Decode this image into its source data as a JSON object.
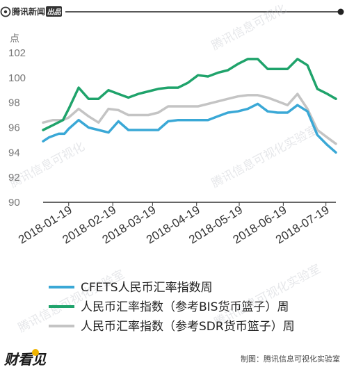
{
  "header": {
    "brand": "腾讯新闻",
    "brand_badge": "出品"
  },
  "footer": {
    "logo_text": "财看见",
    "credit": "制图：腾讯信息可视化实验室"
  },
  "colors": {
    "series": [
      "#3aa8d6",
      "#1fa36b",
      "#c4c4c4"
    ],
    "header_rule": "#222222",
    "axis": "#333333"
  },
  "chart_data": {
    "type": "line",
    "unit_label": "点",
    "ylim": [
      90,
      103
    ],
    "yticks": [
      90,
      92,
      94,
      96,
      98,
      100,
      102
    ],
    "xlim": [
      "2018-01-01",
      "2018-07-26"
    ],
    "xticks": [
      "2018-01-19",
      "2018-02-19",
      "2018-03-19",
      "2018-04-19",
      "2018-05-19",
      "2018-06-19",
      "2018-07-19"
    ],
    "grid": false,
    "legend_position": "bottom",
    "series": [
      {
        "name": "CFETS人民币汇率指数周",
        "x": [
          "2018-01-01",
          "2018-01-05",
          "2018-01-12",
          "2018-01-16",
          "2018-01-19",
          "2018-01-26",
          "2018-02-02",
          "2018-02-09",
          "2018-02-16",
          "2018-02-23",
          "2018-03-02",
          "2018-03-09",
          "2018-03-16",
          "2018-03-23",
          "2018-03-30",
          "2018-04-06",
          "2018-04-13",
          "2018-04-20",
          "2018-04-27",
          "2018-05-04",
          "2018-05-11",
          "2018-05-18",
          "2018-05-25",
          "2018-06-01",
          "2018-06-08",
          "2018-06-15",
          "2018-06-22",
          "2018-06-29",
          "2018-07-06",
          "2018-07-13",
          "2018-07-20",
          "2018-07-26"
        ],
        "y": [
          94.9,
          95.2,
          95.5,
          95.5,
          95.9,
          96.6,
          96.0,
          95.8,
          95.6,
          96.5,
          95.8,
          95.8,
          95.8,
          95.8,
          96.5,
          96.6,
          96.6,
          96.6,
          96.6,
          96.9,
          97.2,
          97.3,
          97.5,
          97.9,
          97.3,
          97.2,
          97.2,
          97.8,
          97.3,
          95.4,
          94.6,
          94.0
        ]
      },
      {
        "name": "人民币汇率指数（参考BIS货币篮子）周",
        "x": [
          "2018-01-01",
          "2018-01-08",
          "2018-01-15",
          "2018-01-19",
          "2018-01-26",
          "2018-02-02",
          "2018-02-09",
          "2018-02-16",
          "2018-02-23",
          "2018-03-02",
          "2018-03-09",
          "2018-03-16",
          "2018-03-23",
          "2018-03-30",
          "2018-04-06",
          "2018-04-13",
          "2018-04-20",
          "2018-04-27",
          "2018-05-04",
          "2018-05-11",
          "2018-05-18",
          "2018-05-25",
          "2018-06-01",
          "2018-06-08",
          "2018-06-15",
          "2018-06-22",
          "2018-06-29",
          "2018-07-06",
          "2018-07-13",
          "2018-07-20",
          "2018-07-26"
        ],
        "y": [
          95.8,
          96.2,
          96.6,
          97.5,
          99.2,
          98.3,
          98.3,
          99.0,
          98.7,
          98.4,
          98.7,
          98.9,
          99.1,
          99.2,
          99.2,
          99.6,
          100.2,
          100.1,
          100.4,
          100.6,
          101.1,
          101.5,
          101.5,
          100.7,
          100.7,
          100.7,
          101.5,
          101.0,
          99.1,
          98.7,
          98.3
        ]
      },
      {
        "name": "人民币汇率指数（参考SDR货币篮子）周",
        "x": [
          "2018-01-01",
          "2018-01-08",
          "2018-01-15",
          "2018-01-19",
          "2018-01-26",
          "2018-02-02",
          "2018-02-09",
          "2018-02-16",
          "2018-02-23",
          "2018-03-02",
          "2018-03-09",
          "2018-03-16",
          "2018-03-23",
          "2018-03-30",
          "2018-04-06",
          "2018-04-13",
          "2018-04-20",
          "2018-04-27",
          "2018-05-04",
          "2018-05-11",
          "2018-05-18",
          "2018-05-25",
          "2018-06-01",
          "2018-06-08",
          "2018-06-15",
          "2018-06-22",
          "2018-06-29",
          "2018-07-06",
          "2018-07-13",
          "2018-07-20",
          "2018-07-26"
        ],
        "y": [
          96.4,
          96.6,
          96.6,
          96.8,
          97.5,
          96.9,
          96.4,
          97.5,
          97.4,
          97.0,
          97.0,
          97.0,
          97.2,
          97.7,
          97.7,
          97.7,
          97.7,
          97.9,
          98.1,
          98.3,
          98.5,
          98.6,
          98.6,
          98.4,
          98.1,
          97.8,
          98.7,
          97.5,
          95.8,
          95.2,
          94.7
        ]
      }
    ]
  }
}
